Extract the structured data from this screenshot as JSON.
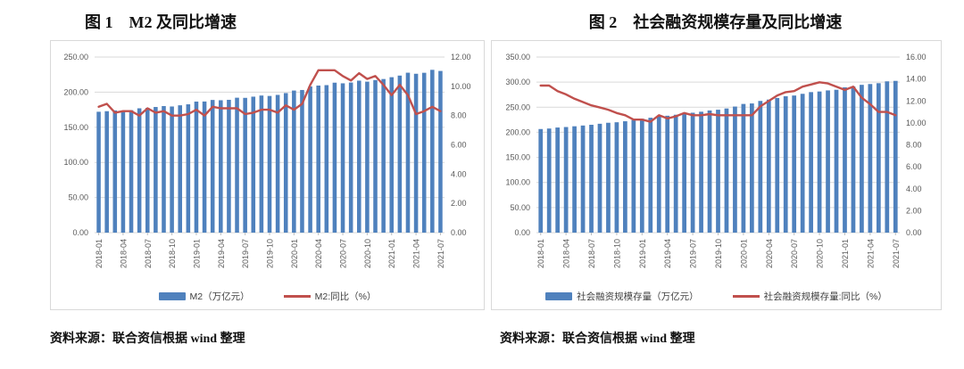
{
  "page": {
    "background": "#ffffff"
  },
  "colors": {
    "bar": "#4f81bd",
    "line": "#c0504d",
    "grid": "#d9d9d9",
    "axis_label": "#595959",
    "tick": "#bfbfbf",
    "border": "#d9d9d9",
    "legend_text": "#404040"
  },
  "figure1": {
    "title": "图 1　M2 及同比增速",
    "legend_bar": "M2（万亿元）",
    "legend_line": "M2:同比（%）",
    "source": "资料来源：联合资信根据 wind 整理"
  },
  "figure2": {
    "title": "图 2　社会融资规模存量及同比增速",
    "legend_bar": "社会融资规模存量（万亿元）",
    "legend_line": "社会融资规模存量:同比（%）",
    "source": "资料来源：联合资信根据 wind 整理"
  },
  "chart_data": [
    {
      "type": "bar+line",
      "title": "图 1　M2 及同比增速",
      "x": [
        "2018-01",
        "2018-02",
        "2018-03",
        "2018-04",
        "2018-05",
        "2018-06",
        "2018-07",
        "2018-08",
        "2018-09",
        "2018-10",
        "2018-11",
        "2018-12",
        "2019-01",
        "2019-02",
        "2019-03",
        "2019-04",
        "2019-05",
        "2019-06",
        "2019-07",
        "2019-08",
        "2019-09",
        "2019-10",
        "2019-11",
        "2019-12",
        "2020-01",
        "2020-02",
        "2020-03",
        "2020-04",
        "2020-05",
        "2020-06",
        "2020-07",
        "2020-08",
        "2020-09",
        "2020-10",
        "2020-11",
        "2020-12",
        "2021-01",
        "2021-02",
        "2021-03",
        "2021-04",
        "2021-05",
        "2021-06",
        "2021-07"
      ],
      "x_tick_labels": [
        "2018-01",
        "2018-04",
        "2018-07",
        "2018-10",
        "2019-01",
        "2019-04",
        "2019-07",
        "2019-10",
        "2020-01",
        "2020-04",
        "2020-07",
        "2020-10",
        "2021-01",
        "2021-04",
        "2021-07"
      ],
      "series": [
        {
          "name": "M2（万亿元）",
          "type": "bar",
          "axis": "left",
          "values": [
            172.1,
            172.9,
            174.0,
            173.8,
            174.3,
            177.0,
            177.6,
            178.9,
            180.2,
            179.6,
            181.3,
            182.7,
            186.6,
            186.7,
            188.9,
            188.5,
            189.1,
            192.1,
            191.9,
            193.6,
            195.2,
            194.6,
            196.1,
            198.7,
            202.3,
            203.1,
            208.1,
            209.4,
            210.0,
            213.5,
            212.6,
            213.7,
            216.4,
            215.0,
            217.2,
            218.7,
            221.3,
            223.6,
            227.7,
            226.2,
            227.6,
            231.8,
            230.2
          ]
        },
        {
          "name": "M2:同比（%）",
          "type": "line",
          "axis": "right",
          "values": [
            8.6,
            8.8,
            8.2,
            8.3,
            8.3,
            8.0,
            8.5,
            8.2,
            8.3,
            8.0,
            8.0,
            8.1,
            8.4,
            8.0,
            8.6,
            8.5,
            8.5,
            8.5,
            8.1,
            8.2,
            8.4,
            8.4,
            8.2,
            8.7,
            8.4,
            8.8,
            10.1,
            11.1,
            11.1,
            11.1,
            10.7,
            10.4,
            10.9,
            10.5,
            10.7,
            10.1,
            9.4,
            10.1,
            9.4,
            8.1,
            8.3,
            8.6,
            8.3
          ]
        }
      ],
      "ylim_left": [
        0,
        250
      ],
      "ylim_right": [
        0,
        12
      ],
      "yticks_left": [
        "0.00",
        "50.00",
        "100.00",
        "150.00",
        "200.00",
        "250.00"
      ],
      "yticks_right": [
        "0.00",
        "2.00",
        "4.00",
        "6.00",
        "8.00",
        "10.00",
        "12.00"
      ],
      "grid": true,
      "legend_position": "bottom"
    },
    {
      "type": "bar+line",
      "title": "图 2　社会融资规模存量及同比增速",
      "x": [
        "2018-01",
        "2018-02",
        "2018-03",
        "2018-04",
        "2018-05",
        "2018-06",
        "2018-07",
        "2018-08",
        "2018-09",
        "2018-10",
        "2018-11",
        "2018-12",
        "2019-01",
        "2019-02",
        "2019-03",
        "2019-04",
        "2019-05",
        "2019-06",
        "2019-07",
        "2019-08",
        "2019-09",
        "2019-10",
        "2019-11",
        "2019-12",
        "2020-01",
        "2020-02",
        "2020-03",
        "2020-04",
        "2020-05",
        "2020-06",
        "2020-07",
        "2020-08",
        "2020-09",
        "2020-10",
        "2020-11",
        "2020-12",
        "2021-01",
        "2021-02",
        "2021-03",
        "2021-04",
        "2021-05",
        "2021-06",
        "2021-07"
      ],
      "x_tick_labels": [
        "2018-01",
        "2018-04",
        "2018-07",
        "2018-10",
        "2019-01",
        "2019-04",
        "2019-07",
        "2019-10",
        "2020-01",
        "2020-04",
        "2020-07",
        "2020-10",
        "2021-01",
        "2021-04",
        "2021-07"
      ],
      "series": [
        {
          "name": "社会融资规模存量（万亿元）",
          "type": "bar",
          "axis": "left",
          "values": [
            206.5,
            207.5,
            209.5,
            210.5,
            212.0,
            213.5,
            215.0,
            217.0,
            219.0,
            220.0,
            222.0,
            224.5,
            227.0,
            229.0,
            231.5,
            233.0,
            235.0,
            237.5,
            239.0,
            241.0,
            243.5,
            245.0,
            247.5,
            251.3,
            256.5,
            257.5,
            262.5,
            265.2,
            268.4,
            271.8,
            273.3,
            276.7,
            280.1,
            281.3,
            283.5,
            284.8,
            289.6,
            291.4,
            294.6,
            296.2,
            297.9,
            301.6,
            302.5
          ]
        },
        {
          "name": "社会融资规模存量:同比（%）",
          "type": "line",
          "axis": "right",
          "values": [
            13.4,
            13.4,
            12.9,
            12.6,
            12.2,
            11.9,
            11.6,
            11.4,
            11.2,
            10.9,
            10.7,
            10.3,
            10.3,
            10.1,
            10.7,
            10.4,
            10.6,
            10.9,
            10.7,
            10.7,
            10.8,
            10.7,
            10.7,
            10.7,
            10.7,
            10.7,
            11.5,
            12.0,
            12.5,
            12.8,
            12.9,
            13.3,
            13.5,
            13.7,
            13.6,
            13.3,
            13.0,
            13.3,
            12.3,
            11.7,
            11.0,
            11.0,
            10.7
          ]
        }
      ],
      "ylim_left": [
        0,
        350
      ],
      "ylim_right": [
        0,
        16
      ],
      "yticks_left": [
        "0.00",
        "50.00",
        "100.00",
        "150.00",
        "200.00",
        "250.00",
        "300.00",
        "350.00"
      ],
      "yticks_right": [
        "0.00",
        "2.00",
        "4.00",
        "6.00",
        "8.00",
        "10.00",
        "12.00",
        "14.00",
        "16.00"
      ],
      "grid": true,
      "legend_position": "bottom"
    }
  ]
}
